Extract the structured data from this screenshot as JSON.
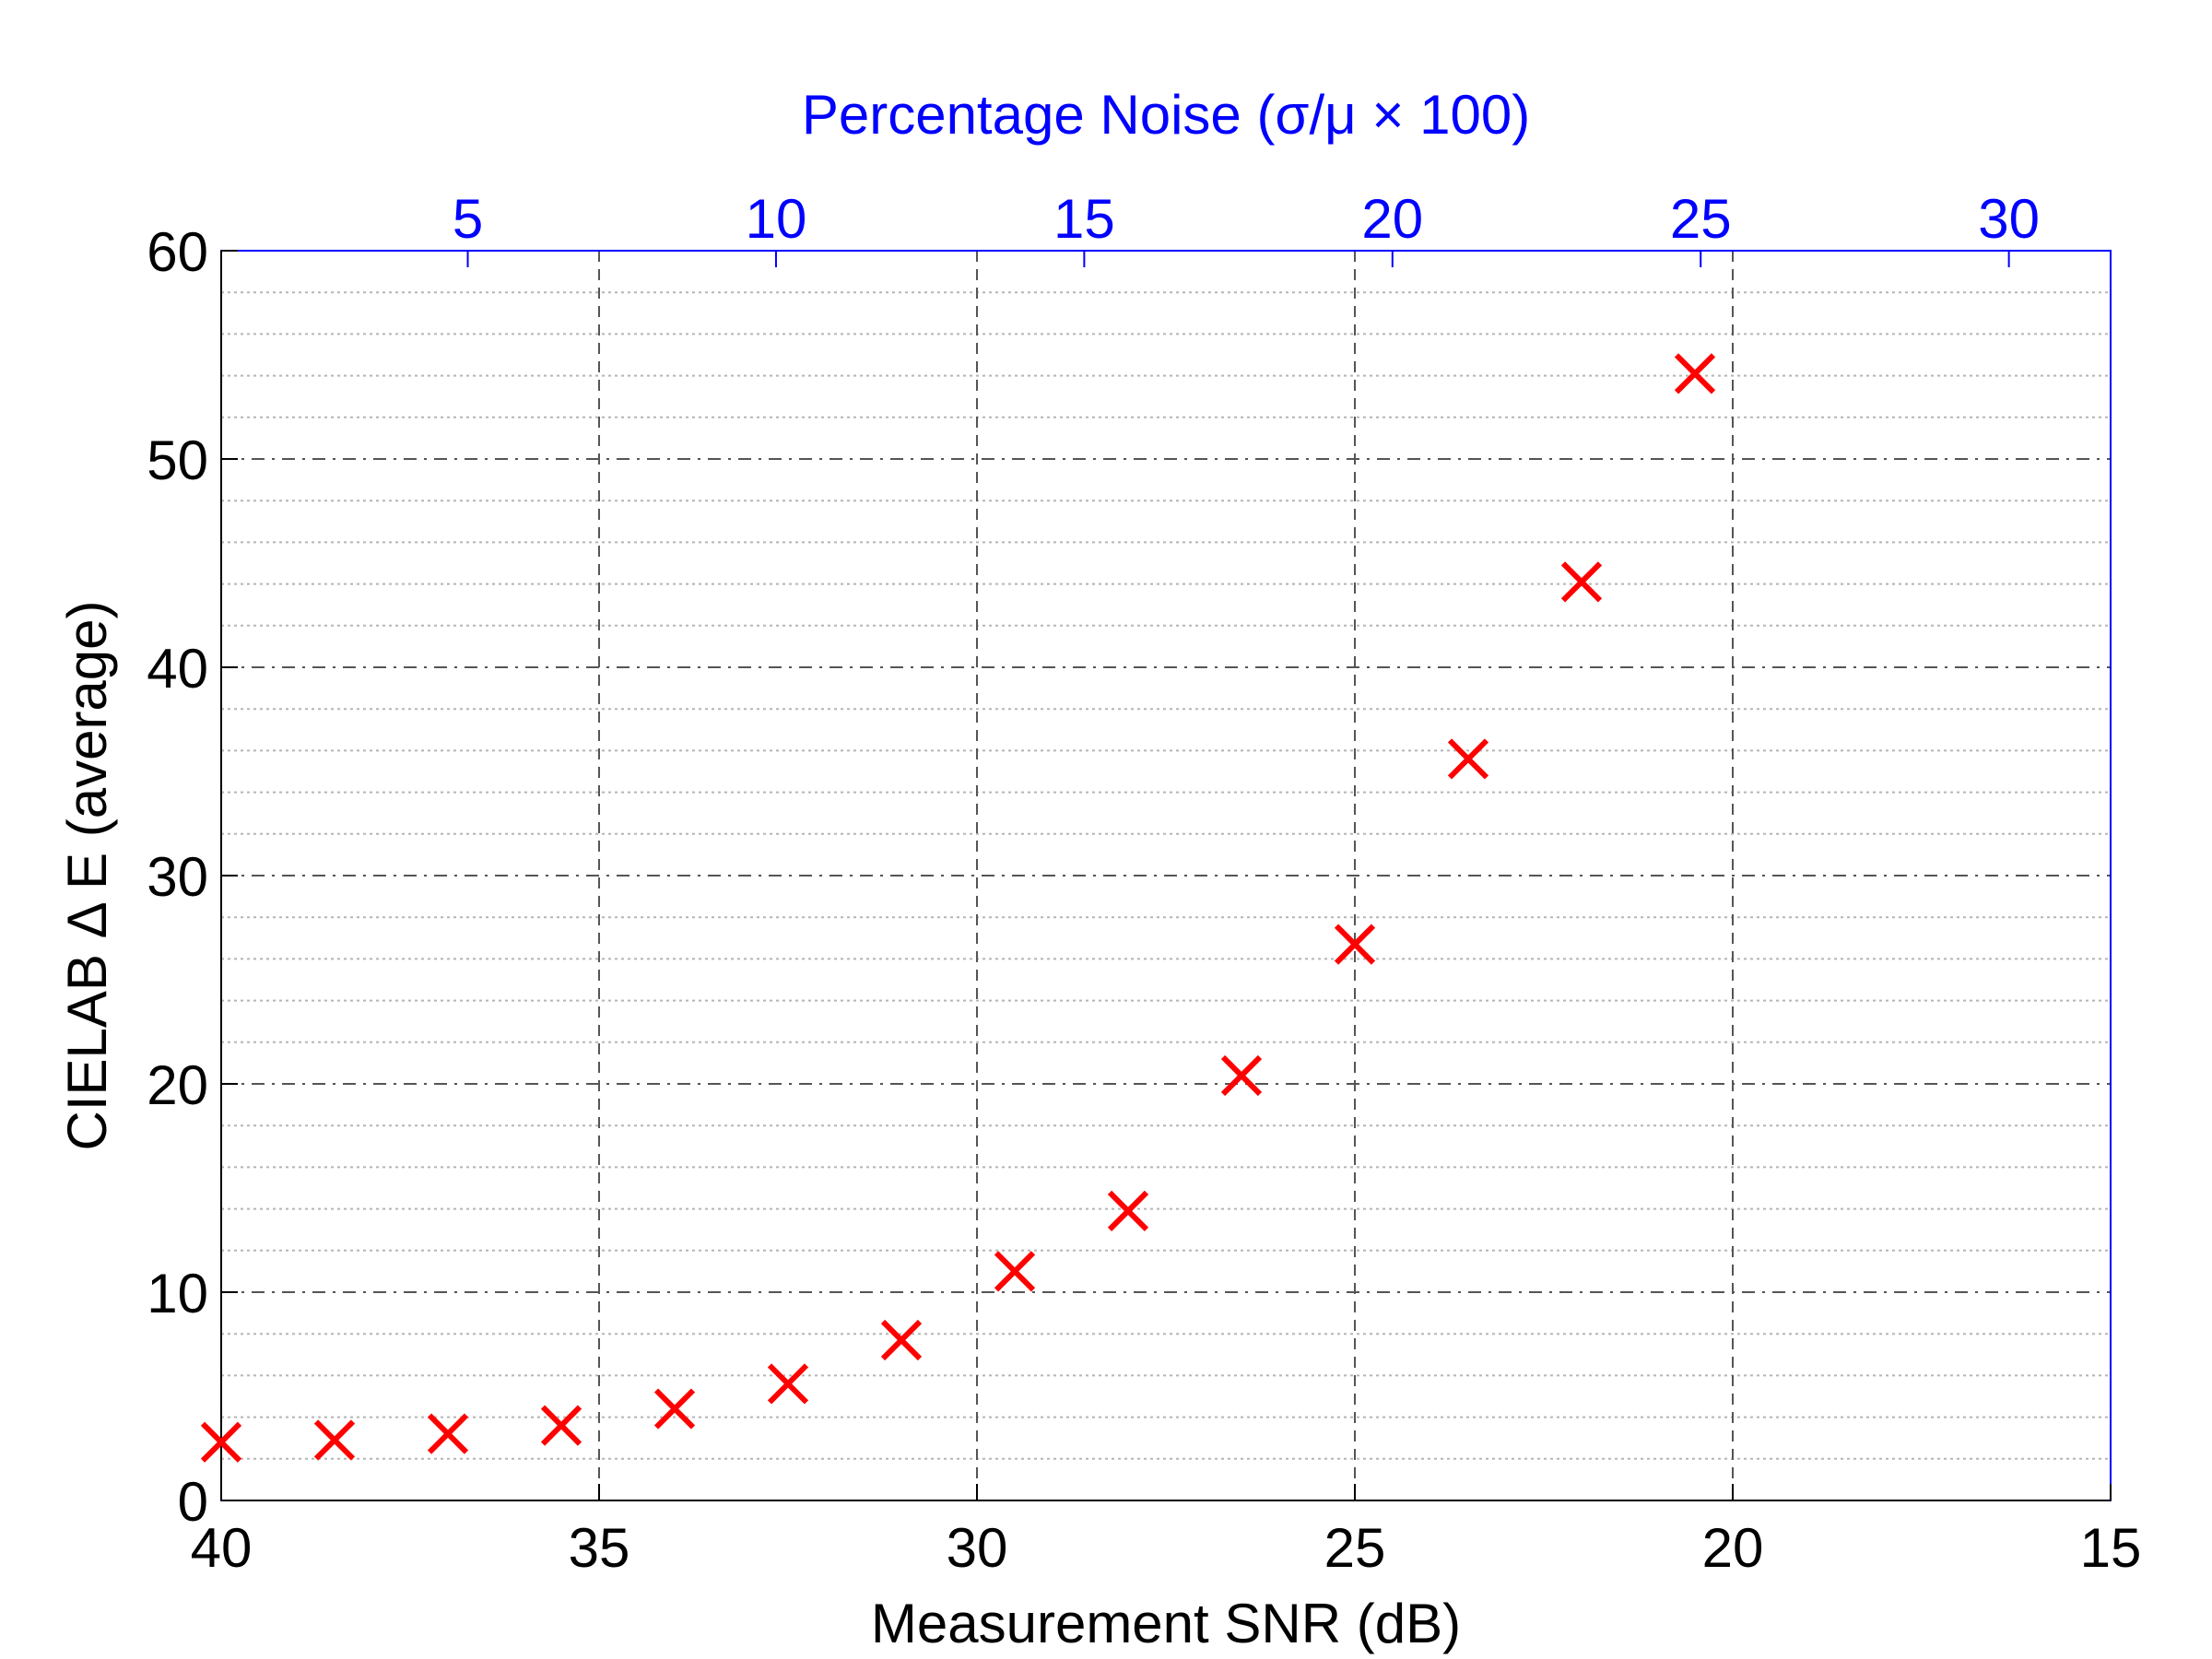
{
  "chart_data": {
    "type": "scatter",
    "xlabel": "Measurement SNR (dB)",
    "ylabel": "CIELAB Δ E (average)",
    "x2label": "Percentage Noise (σ/μ × 100)",
    "xlim": [
      40,
      15
    ],
    "ylim": [
      0,
      60
    ],
    "xticks": [
      "40",
      "35",
      "30",
      "25",
      "20",
      "15"
    ],
    "yticks": [
      "0",
      "10",
      "20",
      "30",
      "40",
      "50",
      "60"
    ],
    "x2ticks": [
      "5",
      "10",
      "15",
      "20",
      "25",
      "30"
    ],
    "x2tick_values": [
      5,
      10,
      15,
      20,
      25,
      30
    ],
    "grid": true,
    "marker": "x",
    "series": [
      {
        "x": [
          40,
          38.5,
          37,
          35.5,
          34,
          32.5,
          31,
          29.5,
          28,
          26.5,
          25,
          23.5,
          22,
          20.5
        ],
        "y": [
          2.8,
          2.9,
          3.2,
          3.6,
          4.4,
          5.6,
          7.7,
          11.0,
          13.9,
          20.4,
          26.7,
          35.6,
          44.1,
          54.1
        ]
      }
    ],
    "colors": {
      "marker": "#ff0000",
      "top_axis": "#0000ff",
      "bottom_axis": "#000000",
      "grid": "#555555"
    }
  }
}
